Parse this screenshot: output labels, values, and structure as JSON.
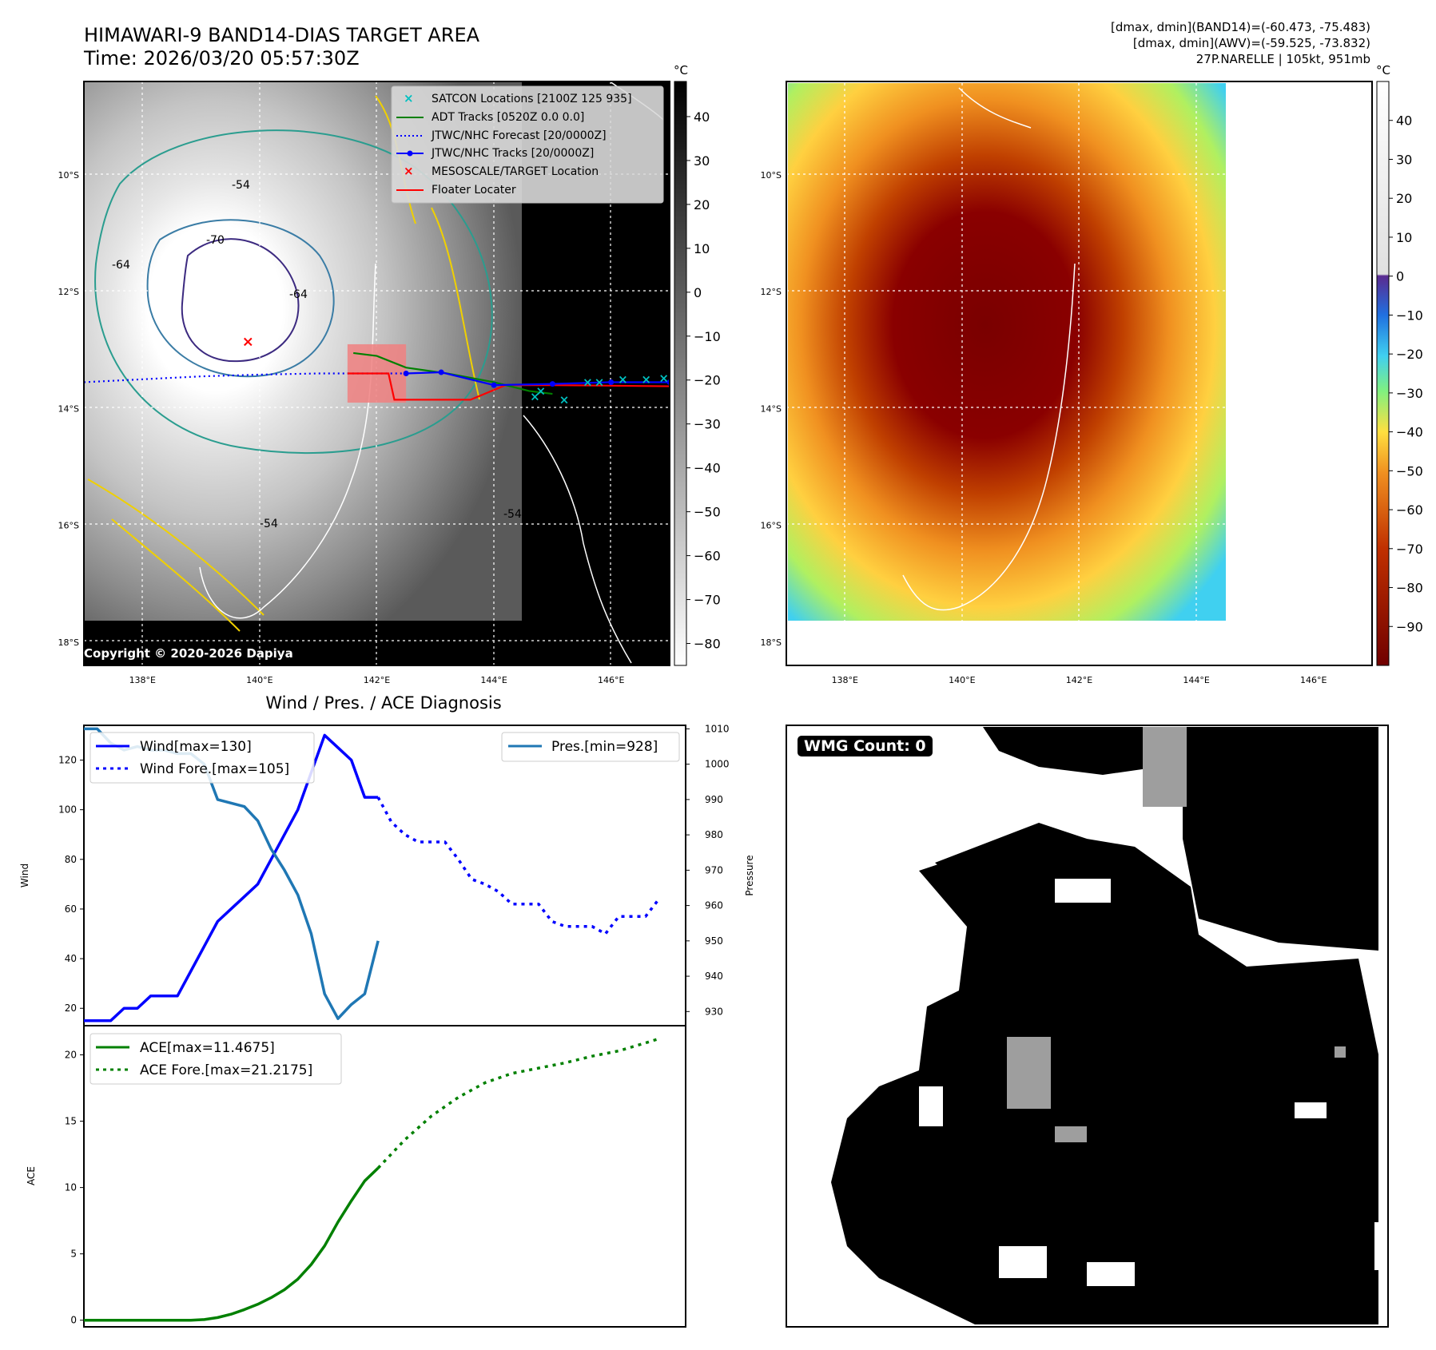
{
  "header": {
    "title": "HIMAWARI-9 BAND14-DIAS TARGET AREA",
    "time": "Time: 2026/03/20 05:57:30Z",
    "stats_band14": "[dmax, dmin](BAND14)=(-60.473, -75.483)",
    "stats_awv": "[dmax, dmin](AWV)=(-59.525, -73.832)",
    "storm": "27P.NARELLE | 105kt, 951mb"
  },
  "copyright": "Copyright © 2020-2026 Dapiya",
  "wmg_label": "WMG Count: 0",
  "colors": {
    "wind": "#0000ff",
    "pressure": "#1f77b4",
    "ace": "#008000",
    "satcon": "#00c0c0",
    "adt": "#008000",
    "jtwc_forecast": "#0000ff",
    "jtwc_tracks": "#0000ff",
    "target": "#ff0000",
    "floater": "#ff0000",
    "target_box": "#f08080"
  },
  "chart_data": [
    {
      "type": "map",
      "panel": "band14",
      "colorbar_unit": "°C",
      "colorbar_ticks": [
        40,
        30,
        20,
        10,
        0,
        -10,
        -20,
        -30,
        -40,
        -50,
        -60,
        -70,
        -80
      ],
      "colorbar_range": [
        -85,
        48
      ],
      "lat_labels": [
        "10°S",
        "12°S",
        "14°S",
        "16°S",
        "18°S"
      ],
      "lat_values": [
        10,
        12,
        14,
        16,
        18
      ],
      "lon_labels": [
        "138°E",
        "140°E",
        "142°E",
        "144°E",
        "146°E"
      ],
      "lon_values": [
        138,
        140,
        142,
        144,
        146
      ],
      "extent": {
        "lon": [
          137,
          147
        ],
        "lat": [
          8.4,
          18.4
        ]
      },
      "contour_labels": [
        "-54",
        "-64",
        "-70",
        "-54",
        "-64",
        "-54"
      ],
      "legend": [
        {
          "label": "SATCON Locations [2100Z 125 935]",
          "marker": "x",
          "color": "#00c0c0"
        },
        {
          "label": "ADT Tracks [0520Z 0.0 0.0]",
          "line": "solid",
          "color": "#008000"
        },
        {
          "label": "JTWC/NHC Forecast [20/0000Z]",
          "line": "dotted",
          "color": "#0000ff"
        },
        {
          "label": "JTWC/NHC Tracks [20/0000Z]",
          "line": "solid-dot",
          "color": "#0000ff"
        },
        {
          "label": "MESOSCALE/TARGET Location",
          "marker": "x",
          "color": "#ff0000"
        },
        {
          "label": "Floater Locater",
          "line": "solid",
          "color": "#ff0000"
        }
      ],
      "target_location": {
        "lon": 139.8,
        "lat": 12.85
      },
      "target_box": {
        "lon": [
          141.5,
          142.5
        ],
        "lat": [
          12.9,
          13.9
        ]
      },
      "jtwc_forecast_track": [
        [
          137,
          13.55
        ],
        [
          138,
          13.5
        ],
        [
          139,
          13.45
        ],
        [
          140,
          13.42
        ],
        [
          141,
          13.4
        ],
        [
          142,
          13.4
        ],
        [
          142.5,
          13.4
        ]
      ],
      "jtwc_track": [
        [
          142.5,
          13.4
        ],
        [
          143.1,
          13.38
        ],
        [
          144,
          13.6
        ],
        [
          145,
          13.58
        ],
        [
          146,
          13.55
        ],
        [
          147,
          13.55
        ]
      ],
      "floater_track": [
        [
          141.5,
          13.4
        ],
        [
          142.2,
          13.4
        ],
        [
          142.3,
          13.85
        ],
        [
          143.6,
          13.85
        ],
        [
          144.2,
          13.6
        ],
        [
          145,
          13.6
        ],
        [
          147,
          13.62
        ]
      ],
      "adt_track": [
        [
          141.6,
          13.05
        ],
        [
          142,
          13.1
        ],
        [
          142.5,
          13.3
        ],
        [
          143.2,
          13.4
        ],
        [
          144,
          13.55
        ],
        [
          144.6,
          13.7
        ],
        [
          145,
          13.75
        ]
      ],
      "satcon_points": [
        [
          144.8,
          13.7
        ],
        [
          145.2,
          13.85
        ],
        [
          145.6,
          13.55
        ],
        [
          146.2,
          13.5
        ],
        [
          146.6,
          13.5
        ],
        [
          146.9,
          13.48
        ],
        [
          145.8,
          13.55
        ],
        [
          144.7,
          13.8
        ]
      ]
    },
    {
      "type": "map",
      "panel": "awv",
      "colorbar_unit": "°C",
      "colorbar_ticks": [
        40,
        30,
        20,
        10,
        0,
        -10,
        -20,
        -30,
        -40,
        -50,
        -60,
        -70,
        -80,
        -90
      ],
      "colorbar_range": [
        -100,
        50
      ],
      "lat_labels": [
        "10°S",
        "12°S",
        "14°S",
        "16°S",
        "18°S"
      ],
      "lat_values": [
        10,
        12,
        14,
        16,
        18
      ],
      "lon_labels": [
        "138°E",
        "140°E",
        "142°E",
        "144°E",
        "146°E"
      ],
      "lon_values": [
        138,
        140,
        142,
        144,
        146
      ],
      "extent": {
        "lon": [
          137,
          147
        ],
        "lat": [
          8.4,
          18.4
        ]
      }
    },
    {
      "type": "line",
      "panel": "intensity",
      "title": "Wind / Pres. / ACE Diagnosis",
      "ylabel": "Wind",
      "ylabel_right": "Pressure",
      "ylim": [
        13,
        134
      ],
      "ylim_right": [
        926,
        1011
      ],
      "yticks": [
        20,
        40,
        60,
        80,
        100,
        120
      ],
      "yticks_right": [
        930,
        940,
        950,
        960,
        970,
        980,
        990,
        1000,
        1010
      ],
      "xlim": [
        0,
        45
      ],
      "series": [
        {
          "name": "Wind[max=130]",
          "axis": "left",
          "style": "solid",
          "color": "#0000ff",
          "x": [
            0,
            1,
            2,
            3,
            4,
            5,
            6,
            7,
            8,
            9,
            10,
            11,
            12,
            13,
            14,
            15,
            16,
            17,
            18,
            19,
            20,
            21,
            22
          ],
          "values": [
            15,
            15,
            15,
            20,
            20,
            25,
            25,
            25,
            35,
            45,
            55,
            60,
            65,
            70,
            80,
            90,
            100,
            115,
            130,
            125,
            120,
            105,
            105
          ]
        },
        {
          "name": "Wind Fore.[max=105]",
          "axis": "left",
          "style": "dotted",
          "color": "#0000ff",
          "x": [
            22,
            23,
            24,
            25,
            26,
            27,
            28,
            29,
            30,
            31,
            32,
            33,
            34,
            35,
            36,
            37,
            38,
            39,
            40,
            41,
            42,
            43
          ],
          "values": [
            105,
            95,
            90,
            87,
            87,
            87,
            80,
            72,
            70,
            67,
            62,
            62,
            62,
            55,
            53,
            53,
            53,
            50,
            57,
            57,
            57,
            64
          ]
        },
        {
          "name": "Pres.[min=928]",
          "axis": "right",
          "style": "solid",
          "color": "#1f77b4",
          "x": [
            0,
            1,
            2,
            3,
            4,
            5,
            6,
            7,
            8,
            9,
            10,
            11,
            12,
            13,
            14,
            15,
            16,
            17,
            18,
            19,
            20,
            21,
            22
          ],
          "values": [
            1010,
            1010,
            1006,
            1004,
            1005,
            1004,
            1004,
            1003,
            1003,
            1000,
            990,
            989,
            988,
            984,
            976,
            970,
            963,
            952,
            935,
            928,
            932,
            935,
            950
          ]
        }
      ]
    },
    {
      "type": "line",
      "panel": "ace",
      "ylabel": "ACE",
      "ylim": [
        -0.5,
        22.2
      ],
      "yticks": [
        0,
        5,
        10,
        15,
        20
      ],
      "xlim": [
        0,
        45
      ],
      "series": [
        {
          "name": "ACE[max=11.4675]",
          "style": "solid",
          "color": "#008000",
          "x": [
            0,
            2,
            4,
            6,
            8,
            9,
            10,
            11,
            12,
            13,
            14,
            15,
            16,
            17,
            18,
            19,
            20,
            21,
            22
          ],
          "values": [
            0,
            0,
            0,
            0,
            0,
            0.05,
            0.2,
            0.45,
            0.8,
            1.2,
            1.7,
            2.3,
            3.1,
            4.2,
            5.6,
            7.4,
            9.0,
            10.5,
            11.4675
          ]
        },
        {
          "name": "ACE Fore.[max=21.2175]",
          "style": "dotted",
          "color": "#008000",
          "x": [
            22,
            24,
            26,
            28,
            30,
            32,
            34,
            36,
            38,
            40,
            42,
            43
          ],
          "values": [
            11.4675,
            13.6,
            15.4,
            16.8,
            17.9,
            18.6,
            19.0,
            19.4,
            19.9,
            20.3,
            20.9,
            21.2175
          ]
        }
      ]
    },
    {
      "type": "heatmap",
      "panel": "wmg",
      "label": "WMG Count: 0",
      "grid": 50,
      "values": "binary black/white/gray cloud mask"
    }
  ]
}
